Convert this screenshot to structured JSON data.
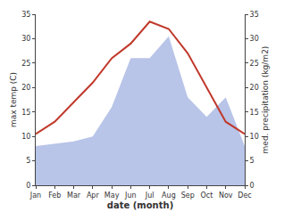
{
  "chart_data": {
    "type": "line",
    "xlabel": "date (month)",
    "ylabel": "max temp (C)",
    "y2label": "med. precipitation (kg/m2)",
    "categories": [
      "Jan",
      "Feb",
      "Mar",
      "Apr",
      "May",
      "Jun",
      "Jul",
      "Aug",
      "Sep",
      "Oct",
      "Nov",
      "Dec"
    ],
    "series": [
      {
        "type": "area",
        "axis": "y2",
        "color": "#b8c4e8",
        "values": [
          8.0,
          8.5,
          9.0,
          10.0,
          16.0,
          26.0,
          26.0,
          30.5,
          18.0,
          14.0,
          18.0,
          8.0
        ]
      },
      {
        "type": "line",
        "color": "#c0392b",
        "values": [
          10.5,
          13.0,
          17.0,
          21.0,
          26.0,
          29.0,
          33.5,
          32.0,
          27.0,
          20.0,
          13.0,
          10.5
        ]
      }
    ],
    "ylim": [
      0,
      35
    ],
    "yticks": [
      0,
      5,
      10,
      15,
      20,
      25,
      30,
      35
    ],
    "y2lim": [
      0,
      35
    ],
    "y2ticks": [
      0,
      5,
      10,
      15,
      20,
      25,
      30,
      35
    ],
    "grid": false
  }
}
